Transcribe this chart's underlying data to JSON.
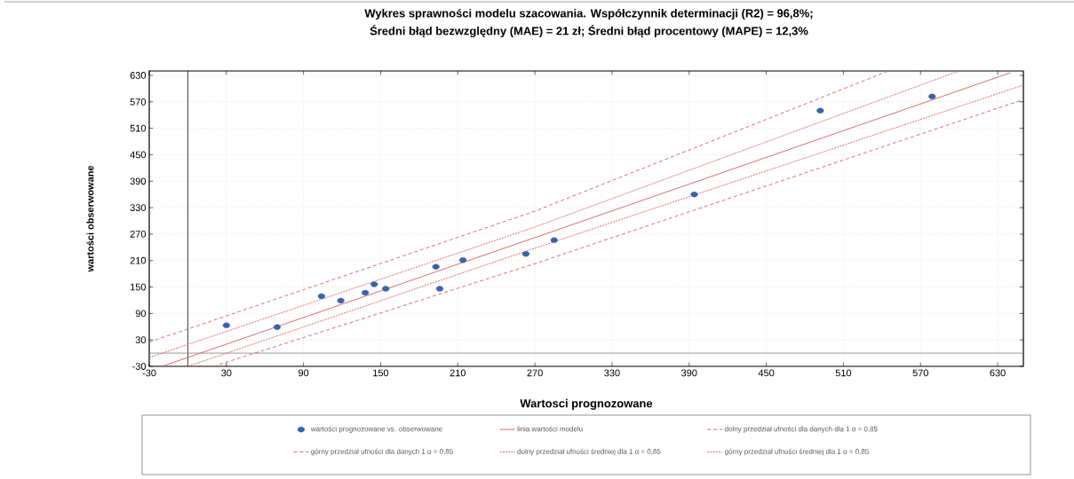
{
  "chart_data": {
    "type": "scatter",
    "title": "Wykres sprawności modelu szacowania. Współczynnik determinacji (R2) = 96,8%;",
    "subtitle": "Średni błąd bezwzględny (MAE) = 21 zł; Średni błąd procentowy (MAPE) = 12,3%",
    "xlabel": "Wartosci prognozowane",
    "ylabel": "wartości obserwowane",
    "xlim": [
      -30,
      650
    ],
    "ylim": [
      -30,
      640
    ],
    "xticks": [
      -30,
      30,
      90,
      150,
      210,
      270,
      330,
      390,
      450,
      510,
      570,
      630
    ],
    "yticks": [
      -30,
      30,
      90,
      150,
      210,
      270,
      330,
      390,
      450,
      510,
      570,
      630
    ],
    "grid": true,
    "legend": "bottom",
    "ref_lines": [
      {
        "axis": "x",
        "value": 0,
        "color": "#000000"
      },
      {
        "axis": "y",
        "value": 0,
        "color": "#7f7f7f"
      }
    ],
    "series": [
      {
        "name": "wartości prognozowane vs. obserwowane",
        "color": "#3a62a8",
        "marker": "circle",
        "x": [
          30,
          69.5,
          104,
          119,
          138,
          145,
          154,
          193,
          196,
          214,
          263,
          285,
          394,
          492,
          579
        ],
        "values": [
          63,
          59,
          129,
          119,
          137,
          156,
          146,
          196,
          146,
          211,
          225,
          256,
          360,
          550,
          582
        ]
      },
      {
        "name": "linia wartości modelu",
        "type": "line",
        "color": "#e05a5a",
        "marker": "none",
        "line_style": "solid",
        "x": [
          -20,
          270,
          640
        ],
        "values": [
          -30,
          262,
          636
        ]
      },
      {
        "name": "dolny przedział ufności dla danych dla 1 α = 0,85",
        "type": "line",
        "color": "#e05a5a",
        "marker": "none",
        "line_style": "dashed",
        "x": [
          20,
          270,
          650
        ],
        "values": [
          -30,
          203,
          575
        ]
      },
      {
        "name": "górny przedział ufności dla danych 1 α = 0,85",
        "type": "line",
        "color": "#e05a5a",
        "marker": "none",
        "line_style": "dashed",
        "x": [
          -30,
          270,
          545
        ],
        "values": [
          25,
          322,
          640
        ]
      },
      {
        "name": "dolny przedział ufności średniej dla 1 α = 0,85",
        "type": "line",
        "color": "#e05a5a",
        "marker": "none",
        "line_style": "dotted",
        "x": [
          0,
          270,
          650
        ],
        "values": [
          -30,
          238,
          608
        ]
      },
      {
        "name": "górny przedział ufności średniej dla 1 α = 0,85",
        "type": "line",
        "color": "#e05a5a",
        "marker": "none",
        "line_style": "dotted",
        "x": [
          -30,
          270,
          600
        ],
        "values": [
          -10,
          286,
          640
        ]
      }
    ]
  }
}
